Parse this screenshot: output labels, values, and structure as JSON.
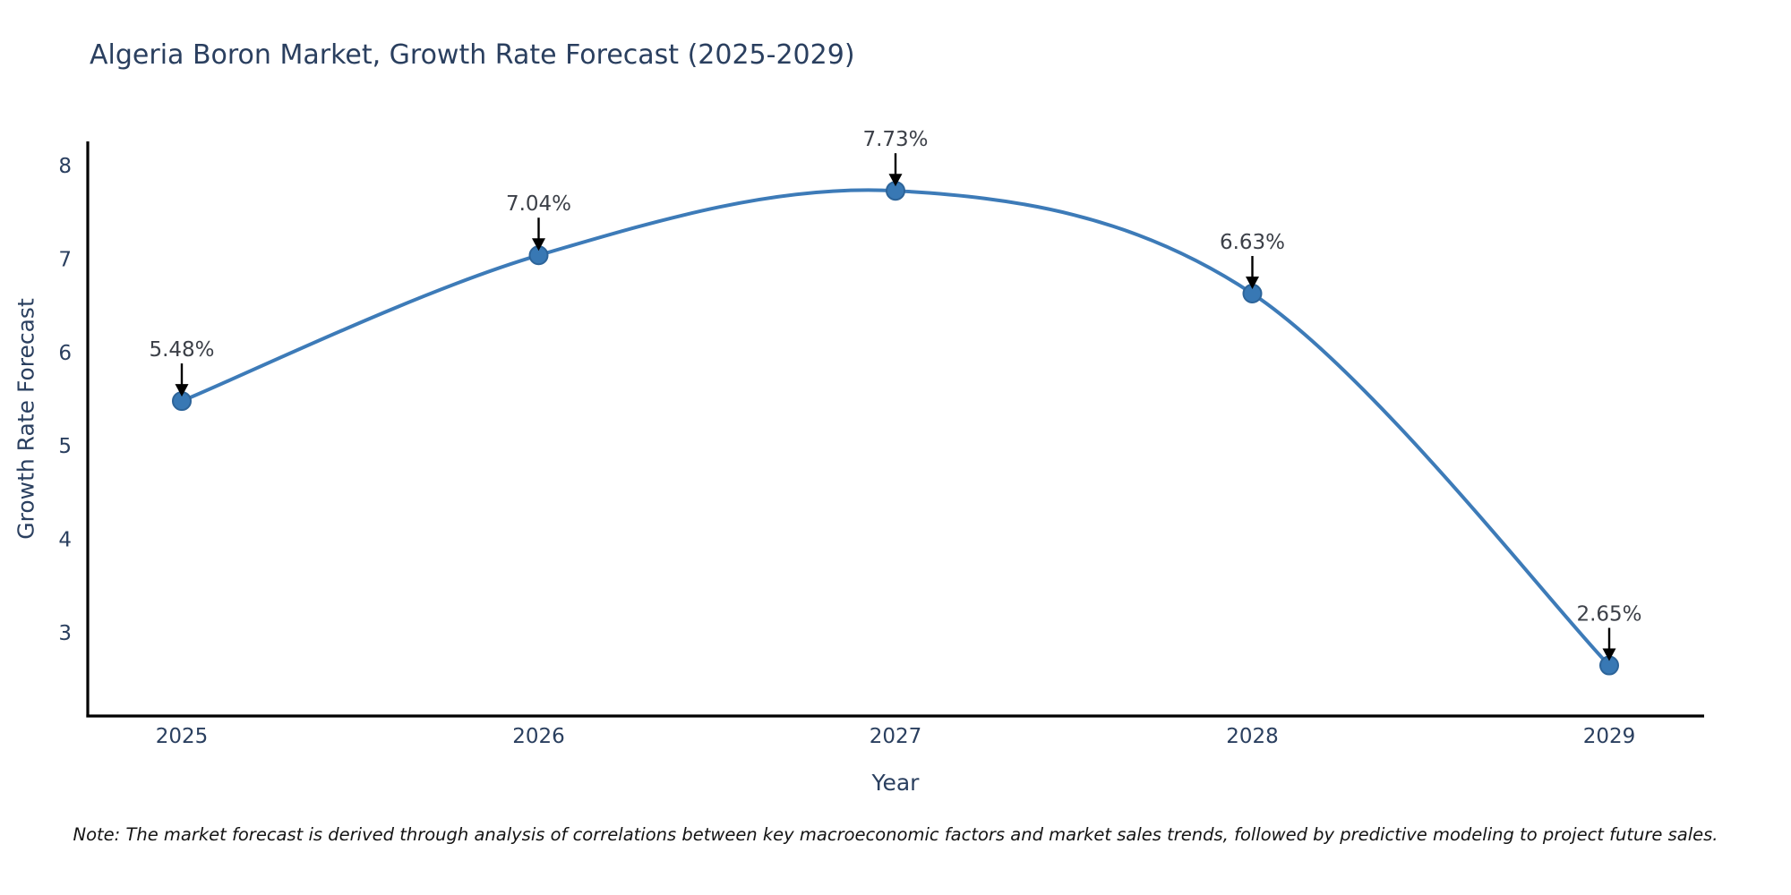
{
  "note": "Note: The market forecast is derived through analysis of correlations between key macroeconomic factors and market sales trends, followed by predictive modeling to project future sales.",
  "chart_data": {
    "type": "line",
    "title": "Algeria Boron Market, Growth Rate Forecast (2025-2029)",
    "xlabel": "Year",
    "ylabel": "Growth Rate Forecast",
    "x": [
      2025,
      2026,
      2027,
      2028,
      2029
    ],
    "values": [
      5.48,
      7.04,
      7.73,
      6.63,
      2.65
    ],
    "point_labels": [
      "5.48%",
      "7.04%",
      "7.73%",
      "6.63%",
      "2.65%"
    ],
    "xticklabels": [
      "2025",
      "2026",
      "2027",
      "2028",
      "2029"
    ],
    "yticks": [
      8,
      7,
      6,
      5,
      4,
      3
    ],
    "ylim": [
      2.1,
      8.25
    ],
    "grid": false,
    "legend": null,
    "line_color": "#3d7bb8",
    "marker_fill": "#3878b4",
    "marker_stroke": "#2d6499",
    "axis_color": "#000000",
    "tick_text_color": "#2a3f5f",
    "annotation_text_color": "#3c4048",
    "arrow_color": "#000000"
  }
}
